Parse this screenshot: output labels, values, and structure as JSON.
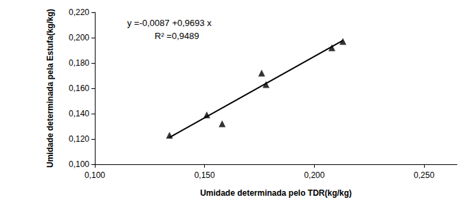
{
  "chart_data": {
    "type": "scatter",
    "xlabel": "Umidade determinada pelo TDR(kg/kg)",
    "ylabel": "Umidade determinada pela Estufa(kg/kg)",
    "annotations": [
      "y =-0,0087 +0,9693 x",
      "R² =0,9489"
    ],
    "xlim": [
      0.1,
      0.265
    ],
    "xticks": [
      {
        "value": 0.1,
        "label": "0,100"
      },
      {
        "value": 0.15,
        "label": "0,150"
      },
      {
        "value": 0.2,
        "label": "0,200"
      },
      {
        "value": 0.25,
        "label": "0,250"
      }
    ],
    "ylim": [
      0.1,
      0.22
    ],
    "yticks": [
      {
        "value": 0.1,
        "label": "0,100"
      },
      {
        "value": 0.12,
        "label": "0,120"
      },
      {
        "value": 0.14,
        "label": "0,140"
      },
      {
        "value": 0.16,
        "label": "0,160"
      },
      {
        "value": 0.18,
        "label": "0,180"
      },
      {
        "value": 0.2,
        "label": "0,200"
      },
      {
        "value": 0.22,
        "label": "0,220"
      }
    ],
    "grid": false,
    "series": [
      {
        "type": "scatter",
        "marker": "triangle",
        "color": "#000000",
        "x": [
          0.134,
          0.151,
          0.158,
          0.176,
          0.178,
          0.208,
          0.213
        ],
        "values": [
          0.123,
          0.139,
          0.132,
          0.172,
          0.163,
          0.192,
          0.197
        ]
      },
      {
        "type": "line",
        "line_style": "solid",
        "color": "#000000",
        "x": [
          0.134,
          0.213
        ],
        "values": [
          0.1212,
          0.1978
        ]
      }
    ]
  }
}
